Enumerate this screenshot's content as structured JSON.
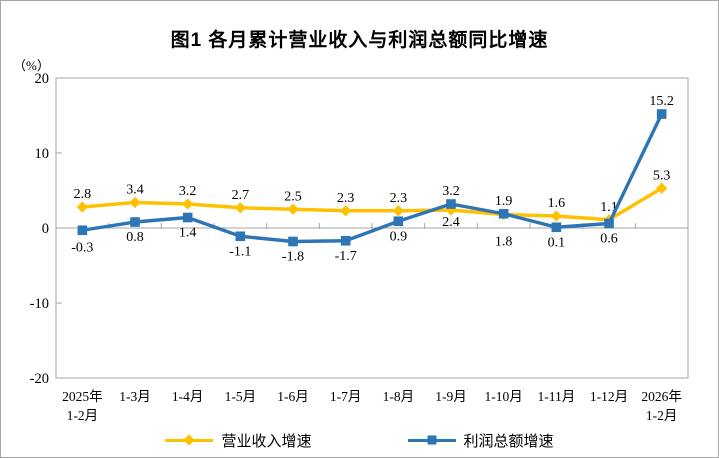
{
  "figure": {
    "title": "图1  各月累计营业收入与利润总额同比增速",
    "unit_label": "（%）"
  },
  "legend": {
    "items": [
      {
        "label": "营业收入增速",
        "color": "#FFC000",
        "marker": "diamond"
      },
      {
        "label": "利润总额增速",
        "color": "#2E75B6",
        "marker": "square"
      }
    ]
  },
  "chart_data": {
    "type": "line",
    "title": "图1  各月累计营业收入与利润总额同比增速",
    "xlabel": "",
    "ylabel": "（%）",
    "ylim": [
      -20,
      20
    ],
    "yticks": [
      20,
      10,
      0,
      -10,
      -20
    ],
    "grid": false,
    "legend_position": "bottom",
    "categories": [
      "2025年\n1-2月",
      "1-3月",
      "1-4月",
      "1-5月",
      "1-6月",
      "1-7月",
      "1-8月",
      "1-9月",
      "1-10月",
      "1-11月",
      "1-12月",
      "2026年\n1-2月"
    ],
    "series": [
      {
        "key": "revenue",
        "name": "营业收入增速",
        "color": "#FFC000",
        "marker": "diamond",
        "values": [
          2.8,
          3.4,
          3.2,
          2.7,
          2.5,
          2.3,
          2.3,
          2.4,
          1.8,
          1.6,
          1.1,
          5.3
        ],
        "label_pos": [
          "above",
          "above",
          "above",
          "above",
          "above",
          "above",
          "above",
          "below",
          "below",
          "above",
          "above",
          "above"
        ],
        "label_dy": [
          null,
          null,
          null,
          null,
          null,
          null,
          null,
          16,
          31,
          null,
          null,
          null
        ]
      },
      {
        "key": "profit",
        "name": "利润总额增速",
        "color": "#2E75B6",
        "marker": "square",
        "values": [
          -0.3,
          0.8,
          1.4,
          -1.1,
          -1.8,
          -1.7,
          0.9,
          3.2,
          1.9,
          0.1,
          0.6,
          15.2
        ],
        "label_pos": [
          "below",
          "below",
          "below",
          "below",
          "below",
          "below",
          "below",
          "above",
          "above",
          "below",
          "below",
          "above"
        ],
        "label_dy": [
          21,
          null,
          null,
          null,
          null,
          null,
          null,
          null,
          null,
          null,
          null,
          null
        ]
      }
    ]
  },
  "colors": {
    "plot_border": "#a6a6a6",
    "axis_line": "#a6a6a6",
    "text": "#000000"
  }
}
